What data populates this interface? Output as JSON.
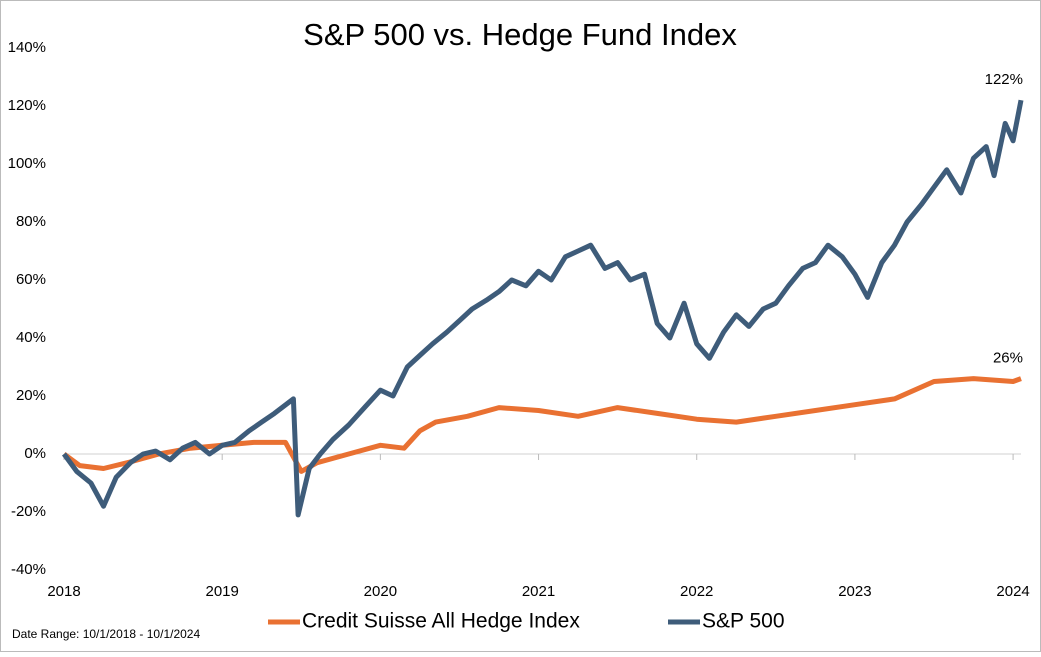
{
  "chart_data": {
    "type": "line",
    "title": "S&P 500 vs. Hedge Fund Index",
    "note": "Date Range:  10/1/2018 - 10/1/2024",
    "xlim": [
      2018,
      2024.05
    ],
    "xticks": [
      2018,
      2019,
      2020,
      2021,
      2022,
      2023,
      2024
    ],
    "ylim": [
      -40,
      140
    ],
    "yticks": [
      {
        "value": -40,
        "label": "-40%"
      },
      {
        "value": -20,
        "label": "-20%"
      },
      {
        "value": 0,
        "label": "0%"
      },
      {
        "value": 20,
        "label": "20%"
      },
      {
        "value": 40,
        "label": "40%"
      },
      {
        "value": 60,
        "label": "60%"
      },
      {
        "value": 80,
        "label": "80%"
      },
      {
        "value": 100,
        "label": "100%"
      },
      {
        "value": 120,
        "label": "120%"
      },
      {
        "value": 140,
        "label": "140%"
      }
    ],
    "legend": "bottom",
    "series": [
      {
        "name": "Credit Suisse All Hedge Index",
        "color": "#e97132",
        "end_label": "26%",
        "x": [
          2018,
          2018.1,
          2018.25,
          2018.4,
          2018.6,
          2018.8,
          2019,
          2019.2,
          2019.4,
          2019.5,
          2019.6,
          2019.8,
          2020,
          2020.15,
          2020.25,
          2020.35,
          2020.55,
          2020.75,
          2021,
          2021.25,
          2021.5,
          2021.75,
          2022,
          2022.25,
          2022.5,
          2022.75,
          2023,
          2023.25,
          2023.5,
          2023.75,
          2024,
          2024.05
        ],
        "values": [
          0,
          -4,
          -5,
          -3,
          0,
          2,
          3,
          4,
          4,
          -6,
          -3,
          0,
          3,
          2,
          8,
          11,
          13,
          16,
          15,
          13,
          16,
          14,
          12,
          11,
          13,
          15,
          17,
          19,
          25,
          26,
          25,
          26
        ]
      },
      {
        "name": "S&P 500",
        "color": "#3e5c7a",
        "end_label": "122%",
        "x": [
          2018,
          2018.08,
          2018.17,
          2018.25,
          2018.33,
          2018.42,
          2018.5,
          2018.58,
          2018.67,
          2018.75,
          2018.83,
          2018.92,
          2019,
          2019.08,
          2019.17,
          2019.25,
          2019.33,
          2019.45,
          2019.48,
          2019.55,
          2019.62,
          2019.7,
          2019.8,
          2019.9,
          2020,
          2020.08,
          2020.17,
          2020.25,
          2020.33,
          2020.42,
          2020.5,
          2020.58,
          2020.67,
          2020.75,
          2020.83,
          2020.92,
          2021,
          2021.08,
          2021.17,
          2021.25,
          2021.33,
          2021.42,
          2021.5,
          2021.58,
          2021.67,
          2021.75,
          2021.83,
          2021.92,
          2022,
          2022.08,
          2022.17,
          2022.25,
          2022.33,
          2022.42,
          2022.5,
          2022.58,
          2022.67,
          2022.75,
          2022.83,
          2022.92,
          2023,
          2023.08,
          2023.17,
          2023.25,
          2023.33,
          2023.42,
          2023.5,
          2023.58,
          2023.67,
          2023.75,
          2023.83,
          2023.88,
          2023.95,
          2024,
          2024.05
        ],
        "values": [
          0,
          -6,
          -10,
          -18,
          -8,
          -3,
          0,
          1,
          -2,
          2,
          4,
          0,
          3,
          4,
          8,
          11,
          14,
          19,
          -21,
          -5,
          0,
          5,
          10,
          16,
          22,
          20,
          30,
          34,
          38,
          42,
          46,
          50,
          53,
          56,
          60,
          58,
          63,
          60,
          68,
          70,
          72,
          64,
          66,
          60,
          62,
          45,
          40,
          52,
          38,
          33,
          42,
          48,
          44,
          50,
          52,
          58,
          64,
          66,
          72,
          68,
          62,
          54,
          66,
          72,
          80,
          86,
          92,
          98,
          90,
          102,
          106,
          96,
          114,
          108,
          122
        ]
      }
    ]
  }
}
